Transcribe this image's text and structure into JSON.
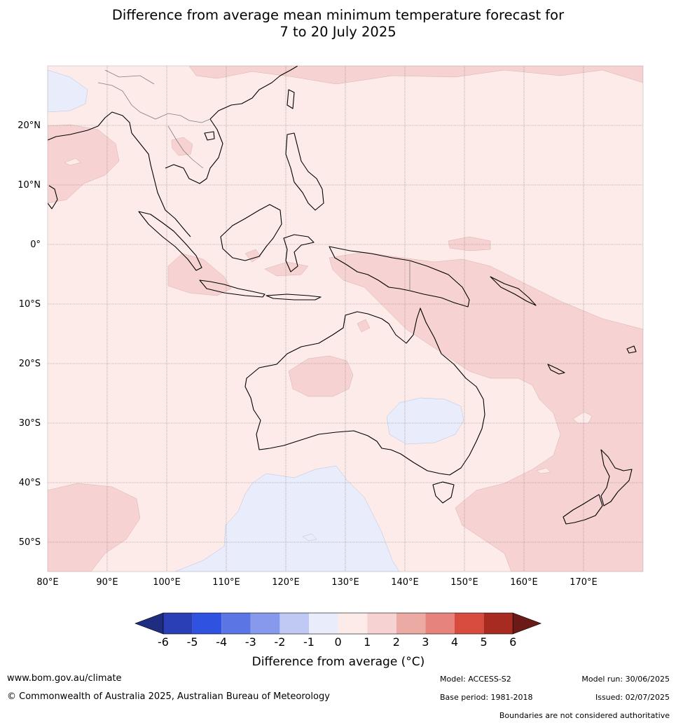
{
  "title_line1": "Difference from average mean minimum temperature forecast for",
  "title_line2": "7 to 20 July 2025",
  "lat_labels": [
    "20°N",
    "10°N",
    "0°",
    "10°S",
    "20°S",
    "30°S",
    "40°S",
    "50°S"
  ],
  "lon_labels": [
    "80°E",
    "90°E",
    "100°E",
    "110°E",
    "120°E",
    "130°E",
    "140°E",
    "150°E",
    "160°E",
    "170°E"
  ],
  "colorbar": {
    "ticks": [
      "-6",
      "-5",
      "-4",
      "-3",
      "-2",
      "-1",
      "0",
      "1",
      "2",
      "3",
      "4",
      "5",
      "6"
    ],
    "colors": [
      "#1f2d80",
      "#2a3fb5",
      "#3052e0",
      "#5b75e4",
      "#8699ec",
      "#c0c9f4",
      "#e8ecfb",
      "#fcebe9",
      "#f6d3d2",
      "#ecaaa5",
      "#e6837c",
      "#d84b3f",
      "#a82b22",
      "#6b1a17"
    ],
    "label": "Difference from average (°C)"
  },
  "footer": {
    "website": "www.bom.gov.au/climate",
    "copyright": "© Commonwealth of Australia 2025, Australian Bureau of Meteorology",
    "model": "Model: ACCESS-S2",
    "base_period": "Base period: 1981-2018",
    "model_run": "Model run: 30/06/2025",
    "issued": "Issued: 02/07/2025",
    "disclaimer": "Boundaries are not considered authoritative"
  }
}
